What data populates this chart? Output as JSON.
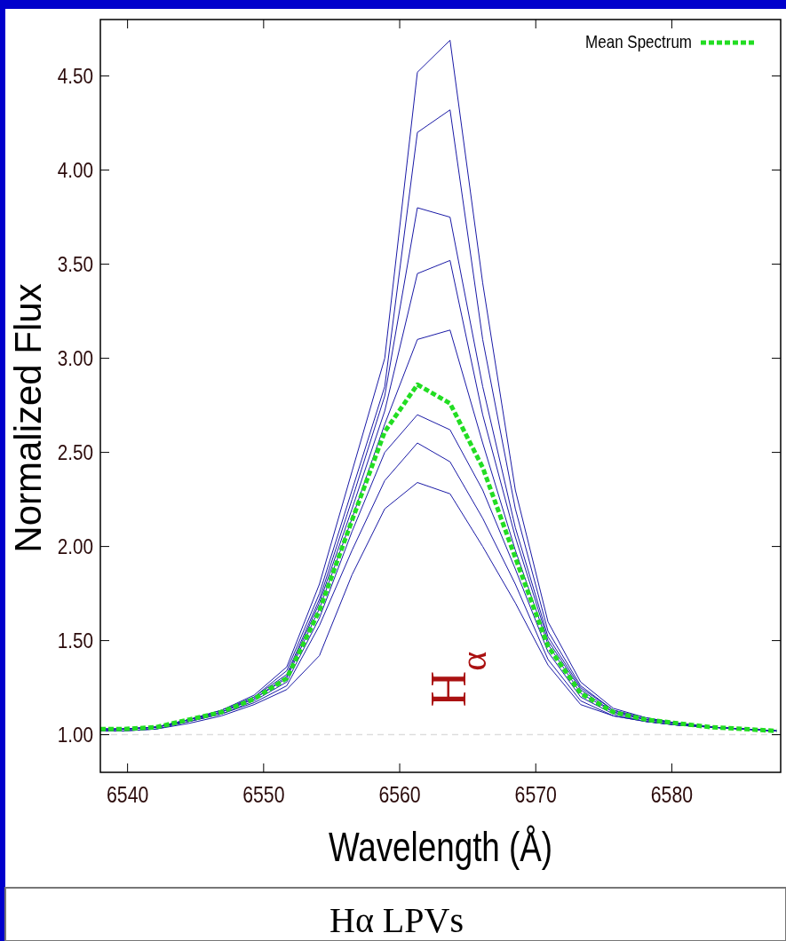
{
  "chart_data": {
    "type": "line",
    "xlabel": "Wavelength (Å)",
    "ylabel": "Normalized Flux",
    "x": [
      6538.0,
      6539.7,
      6542.1,
      6544.5,
      6546.9,
      6549.3,
      6551.7,
      6554.1,
      6556.5,
      6558.9,
      6561.3,
      6563.7,
      6566.1,
      6568.5,
      6570.9,
      6573.3,
      6575.7,
      6578.1,
      6580.5,
      6582.9,
      6585.3,
      6587.7
    ],
    "series": [
      {
        "color": "#1a1aa6",
        "values": [
          1.03,
          1.03,
          1.04,
          1.08,
          1.13,
          1.21,
          1.36,
          1.8,
          2.4,
          3.0,
          4.52,
          4.69,
          3.4,
          2.3,
          1.6,
          1.28,
          1.14,
          1.09,
          1.06,
          1.04,
          1.03,
          1.02
        ]
      },
      {
        "color": "#1a1aa6",
        "values": [
          1.03,
          1.03,
          1.04,
          1.08,
          1.13,
          1.2,
          1.34,
          1.75,
          2.3,
          2.85,
          4.2,
          4.32,
          3.1,
          2.2,
          1.55,
          1.26,
          1.13,
          1.09,
          1.06,
          1.04,
          1.03,
          1.02
        ]
      },
      {
        "color": "#1a1aa6",
        "values": [
          1.03,
          1.03,
          1.04,
          1.08,
          1.12,
          1.2,
          1.32,
          1.72,
          2.25,
          2.8,
          3.8,
          3.75,
          2.85,
          2.1,
          1.52,
          1.25,
          1.13,
          1.08,
          1.06,
          1.04,
          1.03,
          1.02
        ]
      },
      {
        "color": "#1a1aa6",
        "values": [
          1.03,
          1.03,
          1.04,
          1.08,
          1.12,
          1.19,
          1.31,
          1.7,
          2.2,
          2.72,
          3.45,
          3.52,
          2.7,
          2.05,
          1.5,
          1.24,
          1.12,
          1.08,
          1.06,
          1.04,
          1.03,
          1.02
        ]
      },
      {
        "color": "#1a1aa6",
        "values": [
          1.03,
          1.03,
          1.04,
          1.07,
          1.12,
          1.19,
          1.3,
          1.67,
          2.15,
          2.65,
          3.1,
          3.15,
          2.55,
          1.98,
          1.48,
          1.22,
          1.12,
          1.08,
          1.06,
          1.04,
          1.03,
          1.02
        ]
      },
      {
        "color": "#1a1aa6",
        "values": [
          1.02,
          1.03,
          1.04,
          1.07,
          1.11,
          1.18,
          1.28,
          1.62,
          2.08,
          2.5,
          2.7,
          2.62,
          2.3,
          1.88,
          1.44,
          1.2,
          1.11,
          1.07,
          1.05,
          1.04,
          1.03,
          1.02
        ]
      },
      {
        "color": "#1a1aa6",
        "values": [
          1.02,
          1.02,
          1.03,
          1.07,
          1.11,
          1.17,
          1.26,
          1.58,
          1.98,
          2.35,
          2.55,
          2.45,
          2.15,
          1.8,
          1.4,
          1.18,
          1.1,
          1.07,
          1.05,
          1.04,
          1.03,
          1.02
        ]
      },
      {
        "color": "#1a1aa6",
        "values": [
          1.02,
          1.02,
          1.03,
          1.06,
          1.1,
          1.16,
          1.24,
          1.42,
          1.85,
          2.2,
          2.34,
          2.28,
          2.0,
          1.7,
          1.37,
          1.16,
          1.1,
          1.07,
          1.05,
          1.04,
          1.03,
          1.02
        ]
      },
      {
        "name": "Mean Spectrum",
        "color": "#22dd22",
        "line_style": "dashed",
        "values": [
          1.03,
          1.03,
          1.04,
          1.08,
          1.12,
          1.19,
          1.3,
          1.66,
          2.14,
          2.61,
          2.86,
          2.76,
          2.42,
          1.94,
          1.47,
          1.22,
          1.12,
          1.08,
          1.06,
          1.04,
          1.03,
          1.02
        ]
      }
    ],
    "xlim": [
      6538,
      6588
    ],
    "xticks": [
      6540,
      6550,
      6560,
      6570,
      6580
    ],
    "ylim": [
      0.8,
      4.8
    ],
    "yticks": [
      {
        "value": 1.0,
        "label": "1.00"
      },
      {
        "value": 1.5,
        "label": "1.50"
      },
      {
        "value": 2.0,
        "label": "2.00"
      },
      {
        "value": 2.5,
        "label": "2.50"
      },
      {
        "value": 3.0,
        "label": "3.00"
      },
      {
        "value": 3.5,
        "label": "3.50"
      },
      {
        "value": 4.0,
        "label": "4.00"
      },
      {
        "value": 4.5,
        "label": "4.50"
      }
    ],
    "ref_lines": [
      {
        "axis": "y",
        "value": 1.0,
        "color": "#dddddd",
        "line_style": "dashed"
      }
    ],
    "annotations": [
      "H$_{α}$",
      "Hα LPVs"
    ],
    "legend": "top right",
    "grid": false,
    "line_style": "solid"
  }
}
